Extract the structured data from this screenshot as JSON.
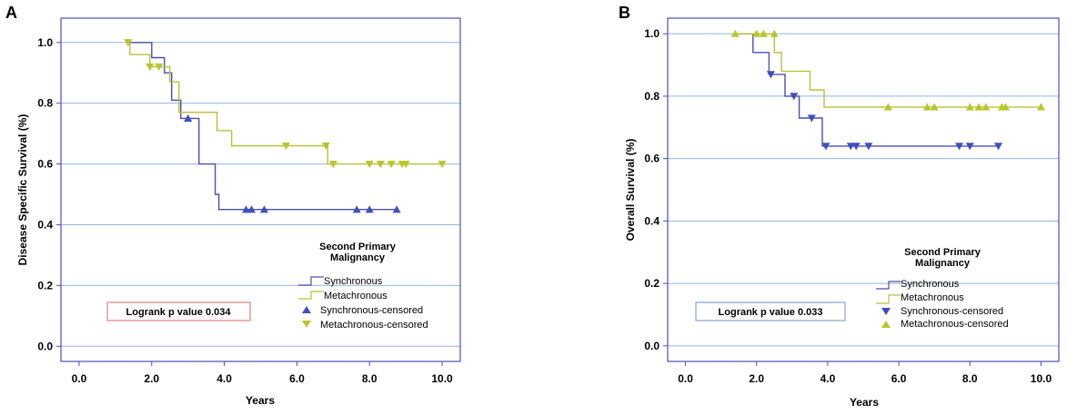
{
  "colors": {
    "synchronous": "#4a4fb3",
    "metachronous": "#b7c23a",
    "synchronous_marker": "#3f4fbf",
    "metachronous_marker": "#b9c62a",
    "gridline": "#8fb6e2",
    "pbox_a": "#e06a6a",
    "pbox_b": "#6f92c8"
  },
  "chart_data": [
    {
      "panel": "A",
      "type": "line",
      "xlabel": "Years",
      "ylabel": "Disease Specific Survival (%)",
      "xlim": [
        -0.5,
        10.5
      ],
      "ylim": [
        -0.05,
        1.08
      ],
      "xticks": [
        "0.0",
        "2.0",
        "4.0",
        "6.0",
        "8.0",
        "10.0"
      ],
      "yticks": [
        "0.0",
        "0.2",
        "0.4",
        "0.6",
        "0.8",
        "1.0"
      ],
      "ytick_values": [
        0,
        0.2,
        0.4,
        0.6,
        0.8,
        1.0
      ],
      "xtick_values": [
        0,
        2,
        4,
        6,
        8,
        10
      ],
      "grid": "horizontal",
      "annotation": "Logrank p value 0.034",
      "legend": {
        "title_line1": "Second Primary",
        "title_line2": "Malignancy",
        "items": [
          "Synchronous",
          "Metachronous",
          "Synchronous-censored",
          "Metachronous-censored"
        ]
      },
      "series": [
        {
          "name": "Synchronous",
          "kind": "step",
          "x": [
            1.35,
            2.0,
            2.35,
            2.55,
            2.8,
            3.3,
            3.75,
            3.85,
            8.75
          ],
          "y": [
            1.0,
            0.95,
            0.9,
            0.81,
            0.75,
            0.6,
            0.5,
            0.45,
            0.45
          ]
        },
        {
          "name": "Metachronous",
          "kind": "step",
          "x": [
            1.35,
            1.4,
            1.95,
            2.5,
            2.75,
            3.8,
            4.2,
            6.85,
            10.0
          ],
          "y": [
            1.0,
            0.96,
            0.92,
            0.87,
            0.77,
            0.71,
            0.66,
            0.6,
            0.6
          ]
        },
        {
          "name": "Synchronous-censored",
          "kind": "marker",
          "shape": "up",
          "x": [
            3.0,
            4.6,
            4.75,
            5.1,
            7.65,
            8.0,
            8.75
          ],
          "y": [
            0.75,
            0.45,
            0.45,
            0.45,
            0.45,
            0.45,
            0.45
          ]
        },
        {
          "name": "Metachronous-censored",
          "kind": "marker",
          "shape": "down",
          "x": [
            1.35,
            1.95,
            2.2,
            5.7,
            6.8,
            7.0,
            8.0,
            8.3,
            8.6,
            8.9,
            9.0,
            10.0
          ],
          "y": [
            1.0,
            0.92,
            0.92,
            0.66,
            0.66,
            0.6,
            0.6,
            0.6,
            0.6,
            0.6,
            0.6,
            0.6
          ]
        }
      ]
    },
    {
      "panel": "B",
      "type": "line",
      "xlabel": "Years",
      "ylabel": "Overall Survival (%)",
      "xlim": [
        -0.5,
        10.5
      ],
      "ylim": [
        -0.05,
        1.05
      ],
      "xticks": [
        "0.0",
        "2.0",
        "4.0",
        "6.0",
        "8.0",
        "10.0"
      ],
      "yticks": [
        "0.0",
        "0.2",
        "0.4",
        "0.6",
        "0.8",
        "1.0"
      ],
      "ytick_values": [
        0,
        0.2,
        0.4,
        0.6,
        0.8,
        1.0
      ],
      "xtick_values": [
        0,
        2,
        4,
        6,
        8,
        10
      ],
      "grid": "horizontal",
      "annotation": "Logrank p value 0.033",
      "legend": {
        "title_line1": "Second Primary",
        "title_line2": "Malignancy",
        "items": [
          "Synchronous",
          "Metachronous",
          "Synchronous-censored",
          "Metachronous-censored"
        ]
      },
      "series": [
        {
          "name": "Synchronous",
          "kind": "step",
          "x": [
            1.4,
            1.9,
            2.35,
            2.8,
            3.2,
            3.85,
            8.8
          ],
          "y": [
            1.0,
            0.94,
            0.87,
            0.8,
            0.73,
            0.64,
            0.64
          ]
        },
        {
          "name": "Metachronous",
          "kind": "step",
          "x": [
            1.4,
            2.5,
            2.7,
            3.5,
            3.9,
            10.0
          ],
          "y": [
            1.0,
            0.94,
            0.88,
            0.82,
            0.765,
            0.765
          ]
        },
        {
          "name": "Synchronous-censored",
          "kind": "marker",
          "shape": "down",
          "x": [
            2.4,
            3.05,
            3.55,
            3.95,
            4.65,
            4.8,
            5.15,
            7.7,
            8.0,
            8.8
          ],
          "y": [
            0.87,
            0.8,
            0.73,
            0.64,
            0.64,
            0.64,
            0.64,
            0.64,
            0.64,
            0.64
          ]
        },
        {
          "name": "Metachronous-censored",
          "kind": "marker",
          "shape": "up",
          "x": [
            1.4,
            2.0,
            2.2,
            2.5,
            5.7,
            6.8,
            7.0,
            8.0,
            8.25,
            8.45,
            8.9,
            9.0,
            10.0
          ],
          "y": [
            1.0,
            1.0,
            1.0,
            1.0,
            0.765,
            0.765,
            0.765,
            0.765,
            0.765,
            0.765,
            0.765,
            0.765,
            0.765
          ]
        }
      ]
    }
  ]
}
